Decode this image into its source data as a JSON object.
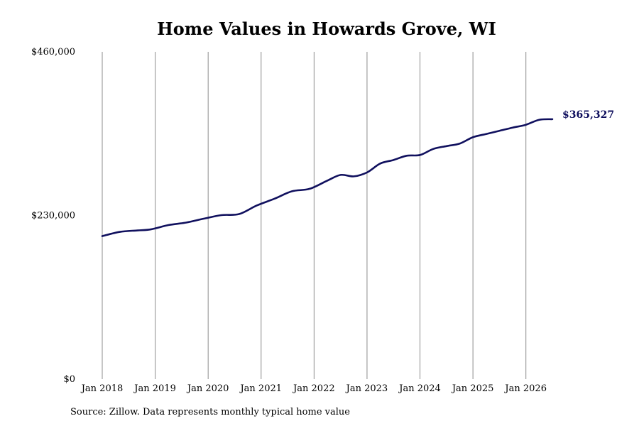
{
  "chart_data": {
    "type": "line",
    "title": "Home Values in Howards Grove, WI",
    "xlabel": "",
    "ylabel": "",
    "ylim": [
      0,
      460000
    ],
    "y_ticks": [
      {
        "value": 0,
        "label": "$0"
      },
      {
        "value": 230000,
        "label": "$230,000"
      },
      {
        "value": 460000,
        "label": "$460,000"
      }
    ],
    "x_ticks": [
      {
        "date": "2018-01",
        "label": "Jan 2018"
      },
      {
        "date": "2019-01",
        "label": "Jan 2019"
      },
      {
        "date": "2020-01",
        "label": "Jan 2020"
      },
      {
        "date": "2021-01",
        "label": "Jan 2021"
      },
      {
        "date": "2022-01",
        "label": "Jan 2022"
      },
      {
        "date": "2023-01",
        "label": "Jan 2023"
      },
      {
        "date": "2024-01",
        "label": "Jan 2024"
      },
      {
        "date": "2025-01",
        "label": "Jan 2025"
      },
      {
        "date": "2026-01",
        "label": "Jan 2026"
      }
    ],
    "grid": {
      "vertical": true,
      "horizontal": false
    },
    "line_color": "#10105e",
    "end_label": "$365,327",
    "series": [
      {
        "points": [
          [
            "2018-01",
            201000
          ],
          [
            "2018-05",
            207000
          ],
          [
            "2018-09",
            209000
          ],
          [
            "2018-12",
            210500
          ],
          [
            "2019-04",
            216500
          ],
          [
            "2019-08",
            220000
          ],
          [
            "2019-12",
            225500
          ],
          [
            "2020-04",
            230500
          ],
          [
            "2020-08",
            232000
          ],
          [
            "2020-12",
            244000
          ],
          [
            "2021-04",
            253500
          ],
          [
            "2021-08",
            264000
          ],
          [
            "2021-12",
            267500
          ],
          [
            "2022-04",
            279000
          ],
          [
            "2022-07",
            287000
          ],
          [
            "2022-10",
            285000
          ],
          [
            "2023-01",
            290500
          ],
          [
            "2023-04",
            303000
          ],
          [
            "2023-07",
            308000
          ],
          [
            "2023-10",
            314000
          ],
          [
            "2024-01",
            315000
          ],
          [
            "2024-04",
            323500
          ],
          [
            "2024-07",
            327500
          ],
          [
            "2024-10",
            331000
          ],
          [
            "2025-01",
            340000
          ],
          [
            "2025-04",
            344500
          ],
          [
            "2025-07",
            349000
          ],
          [
            "2025-10",
            353500
          ],
          [
            "2026-01",
            357500
          ],
          [
            "2026-04",
            364500
          ],
          [
            "2026-07",
            365327
          ]
        ]
      }
    ]
  },
  "footer": {
    "source": "Source: Zillow. Data represents monthly typical home value"
  }
}
